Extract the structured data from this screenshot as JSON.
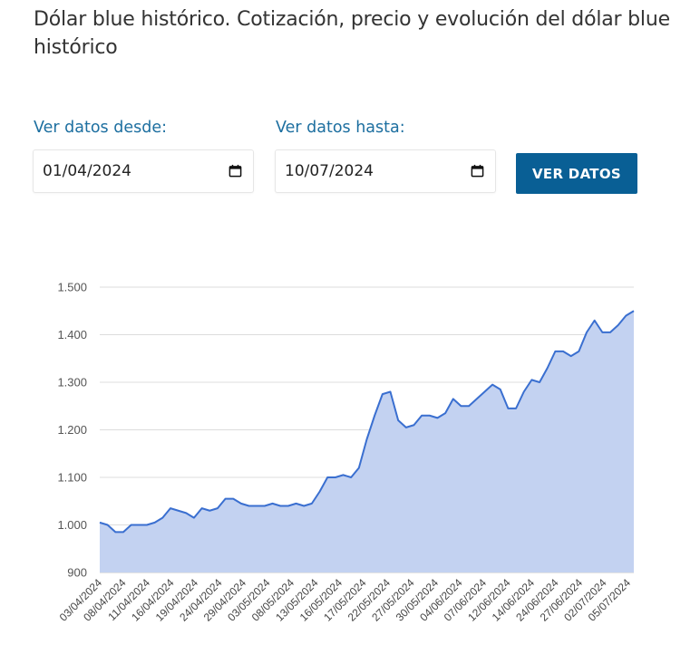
{
  "page": {
    "title": "Dólar blue histórico. Cotización, precio y evolución del dólar blue histórico"
  },
  "filters": {
    "from_label": "Ver datos desde:",
    "from_value": "01/04/2024",
    "to_label": "Ver datos hasta:",
    "to_value": "10/07/2024",
    "submit_label": "VER DATOS",
    "icon": "calendar-icon"
  },
  "colors": {
    "accent": "#095f95",
    "label": "#1d6fa0",
    "line": "#3a6fd0",
    "fill": "#c3d2f1"
  },
  "chart_data": {
    "type": "area",
    "title": "",
    "xlabel": "",
    "ylabel": "",
    "ylim": [
      900,
      1500
    ],
    "yticks": [
      900,
      1000,
      1100,
      1200,
      1300,
      1400,
      1500
    ],
    "ytick_labels": [
      "900",
      "1.000",
      "1.100",
      "1.200",
      "1.300",
      "1.400",
      "1.500"
    ],
    "grid": true,
    "xtick_labels": [
      "03/04/2024",
      "08/04/2024",
      "11/04/2024",
      "16/04/2024",
      "19/04/2024",
      "24/04/2024",
      "29/04/2024",
      "03/05/2024",
      "08/05/2024",
      "13/05/2024",
      "16/05/2024",
      "17/05/2024",
      "22/05/2024",
      "27/05/2024",
      "30/05/2024",
      "04/06/2024",
      "07/06/2024",
      "12/06/2024",
      "14/06/2024",
      "24/06/2024",
      "27/06/2024",
      "02/07/2024",
      "05/07/2024"
    ],
    "values": [
      1005,
      1000,
      985,
      985,
      1000,
      1000,
      1000,
      1005,
      1015,
      1035,
      1030,
      1025,
      1015,
      1035,
      1030,
      1035,
      1055,
      1055,
      1045,
      1040,
      1040,
      1040,
      1045,
      1040,
      1040,
      1045,
      1040,
      1045,
      1070,
      1100,
      1100,
      1105,
      1100,
      1120,
      1180,
      1230,
      1275,
      1280,
      1220,
      1205,
      1210,
      1230,
      1230,
      1225,
      1235,
      1265,
      1250,
      1250,
      1265,
      1280,
      1295,
      1285,
      1245,
      1245,
      1280,
      1305,
      1300,
      1330,
      1365,
      1365,
      1355,
      1365,
      1405,
      1430,
      1405,
      1405,
      1420,
      1440,
      1450
    ]
  }
}
